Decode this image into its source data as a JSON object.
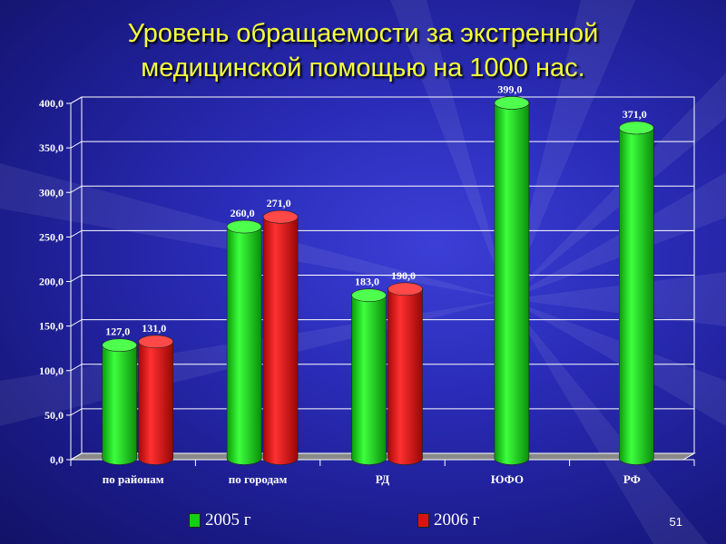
{
  "title": "Уровень обращаемости за экстренной медицинской помощью на 1000 нас.",
  "page_number": "51",
  "colors": {
    "series_2005": "#12d012",
    "series_2006": "#e01010",
    "title": "#f4ff3a"
  },
  "chart_data": {
    "type": "bar",
    "title": "Уровень обращаемости за экстренной медицинской помощью на 1000 нас.",
    "categories": [
      "по районам",
      "по городам",
      "РД",
      "ЮФО",
      "РФ"
    ],
    "series": [
      {
        "name": "2005 г",
        "values": [
          127.0,
          260.0,
          183.0,
          399.0,
          371.0
        ],
        "labels": [
          "127,0",
          "260,0",
          "183,0",
          "399,0",
          "371,0"
        ]
      },
      {
        "name": "2006 г",
        "values": [
          131.0,
          271.0,
          190.0,
          null,
          null
        ],
        "labels": [
          "131,0",
          "271,0",
          "190,0",
          "",
          ""
        ]
      }
    ],
    "ylim": [
      0,
      400
    ],
    "y_ticks": [
      "0,0",
      "50,0",
      "100,0",
      "150,0",
      "200,0",
      "250,0",
      "300,0",
      "350,0",
      "400,0"
    ],
    "xlabel": "",
    "ylabel": "",
    "grid": true,
    "legend_position": "bottom"
  }
}
